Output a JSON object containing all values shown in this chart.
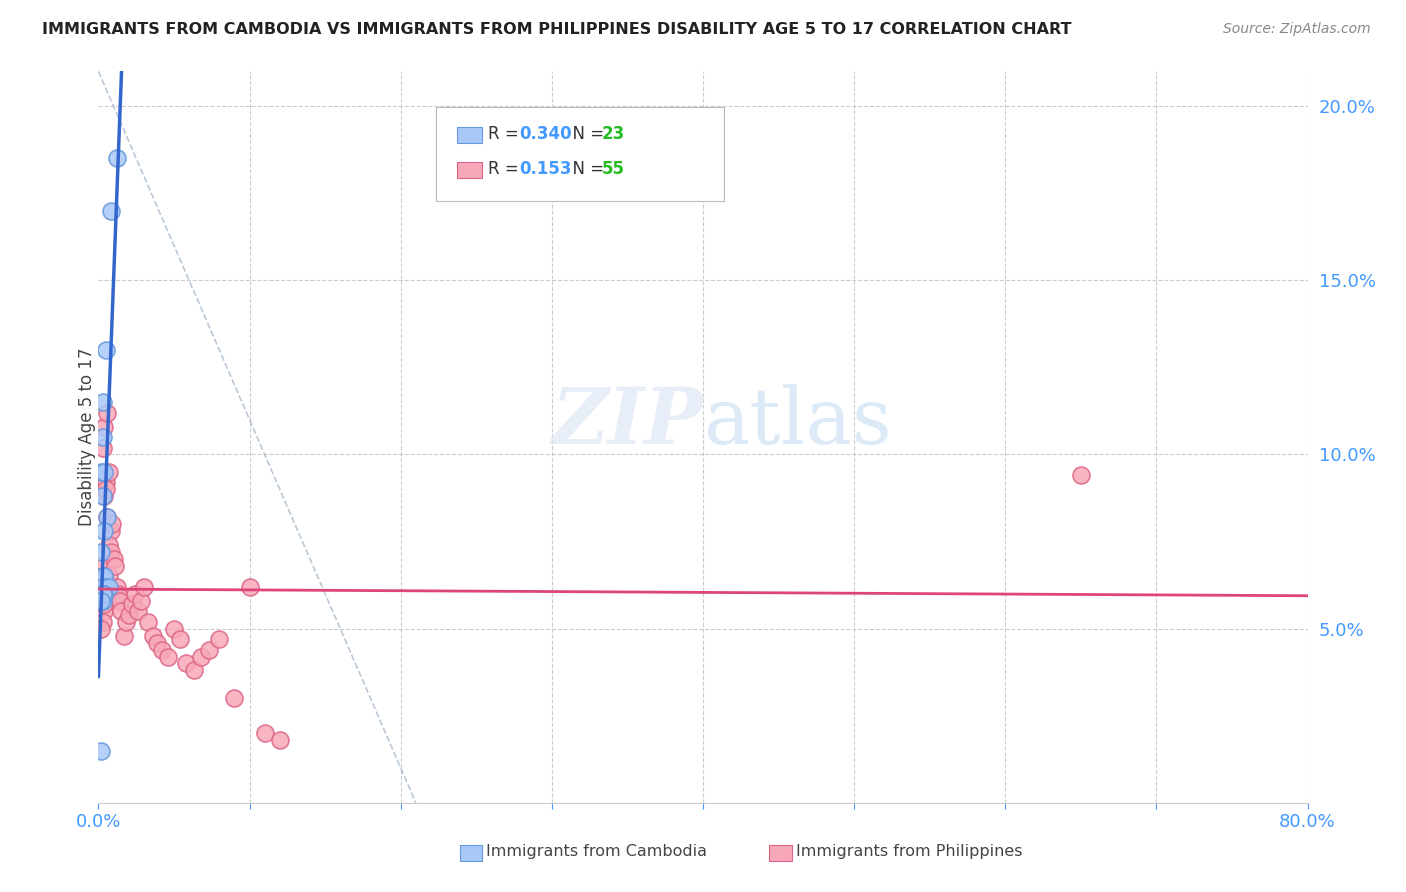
{
  "title": "IMMIGRANTS FROM CAMBODIA VS IMMIGRANTS FROM PHILIPPINES DISABILITY AGE 5 TO 17 CORRELATION CHART",
  "source": "Source: ZipAtlas.com",
  "ylabel": "Disability Age 5 to 17",
  "cambodia_color": "#a8c8f8",
  "philippines_color": "#f8a8b8",
  "cambodia_edge_color": "#6699dd",
  "philippines_edge_color": "#dd6688",
  "regression_cambodia_color": "#3366cc",
  "regression_philippines_color": "#dd4477",
  "cambodia_R": "0.340",
  "cambodia_N": "23",
  "philippines_R": "0.153",
  "philippines_N": "55",
  "legend_R_color": "#4499ff",
  "legend_N_color": "#22bb22",
  "watermark_zip": "ZIP",
  "watermark_atlas": "atlas",
  "background_color": "#ffffff",
  "grid_color": "#cccccc",
  "dash_line_color": "#aabbcc",
  "title_color": "#222222",
  "source_color": "#888888",
  "axis_tick_color": "#4499ff",
  "ylabel_color": "#444444",
  "xlim": [
    0.0,
    0.8
  ],
  "ylim": [
    0.0,
    0.21
  ],
  "cam_x": [
    0.008,
    0.012,
    0.003,
    0.005,
    0.003,
    0.002,
    0.004,
    0.003,
    0.006,
    0.004,
    0.002,
    0.003,
    0.004,
    0.005,
    0.003,
    0.002,
    0.004,
    0.007,
    0.003,
    0.002,
    0.004,
    0.003,
    0.002
  ],
  "cam_y": [
    0.17,
    0.185,
    0.115,
    0.13,
    0.105,
    0.095,
    0.095,
    0.088,
    0.082,
    0.078,
    0.072,
    0.065,
    0.065,
    0.062,
    0.062,
    0.06,
    0.06,
    0.062,
    0.058,
    0.015,
    0.06,
    0.06,
    0.058
  ],
  "phi_x": [
    0.002,
    0.003,
    0.004,
    0.003,
    0.005,
    0.004,
    0.006,
    0.007,
    0.005,
    0.004,
    0.003,
    0.002,
    0.004,
    0.005,
    0.003,
    0.006,
    0.004,
    0.005,
    0.007,
    0.006,
    0.008,
    0.007,
    0.009,
    0.008,
    0.01,
    0.011,
    0.012,
    0.013,
    0.014,
    0.015,
    0.017,
    0.018,
    0.02,
    0.022,
    0.024,
    0.026,
    0.028,
    0.03,
    0.033,
    0.036,
    0.039,
    0.042,
    0.046,
    0.05,
    0.054,
    0.058,
    0.063,
    0.068,
    0.073,
    0.08,
    0.09,
    0.1,
    0.65,
    0.11,
    0.12
  ],
  "phi_y": [
    0.068,
    0.065,
    0.06,
    0.062,
    0.058,
    0.055,
    0.062,
    0.065,
    0.06,
    0.057,
    0.052,
    0.05,
    0.108,
    0.092,
    0.102,
    0.112,
    0.088,
    0.09,
    0.095,
    0.082,
    0.078,
    0.074,
    0.08,
    0.072,
    0.07,
    0.068,
    0.062,
    0.06,
    0.058,
    0.055,
    0.048,
    0.052,
    0.054,
    0.057,
    0.06,
    0.055,
    0.058,
    0.062,
    0.052,
    0.048,
    0.046,
    0.044,
    0.042,
    0.05,
    0.047,
    0.04,
    0.038,
    0.042,
    0.044,
    0.047,
    0.03,
    0.062,
    0.094,
    0.02,
    0.018
  ]
}
